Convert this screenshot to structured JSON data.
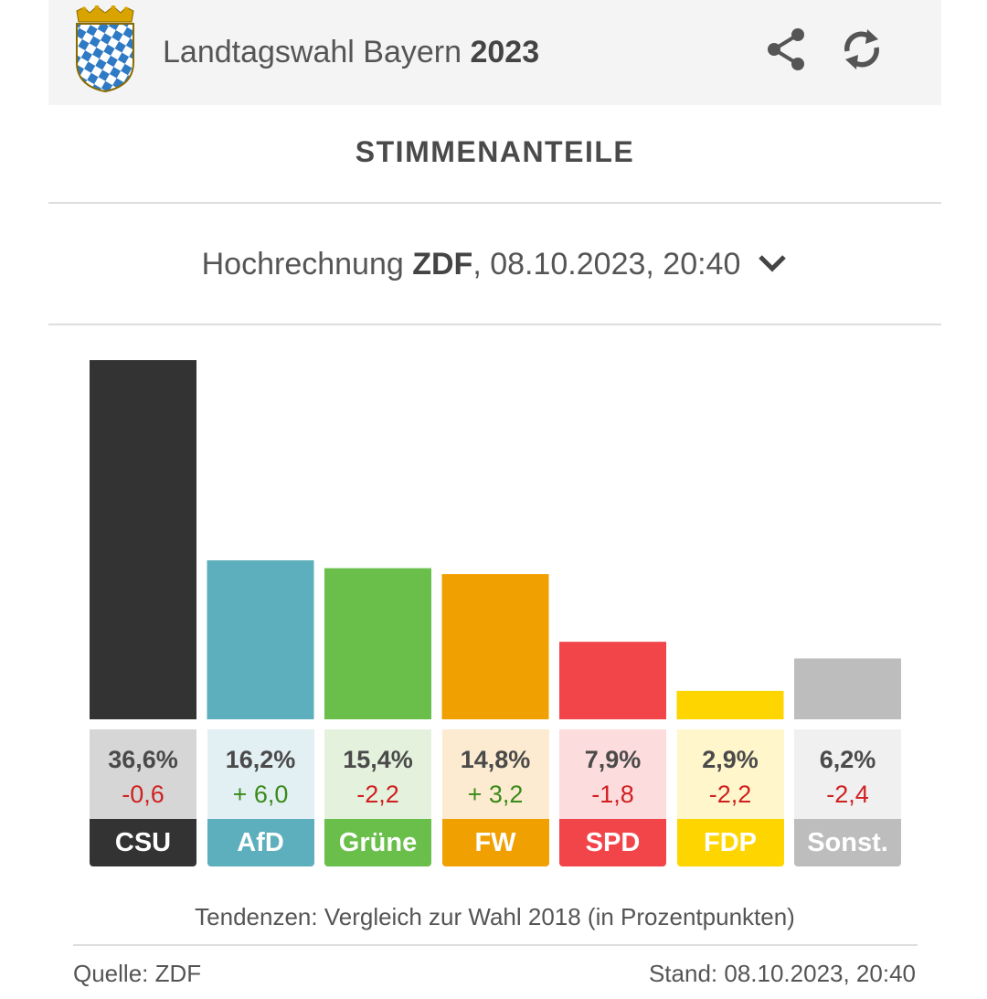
{
  "header": {
    "title_prefix": "Landtagswahl Bayern",
    "title_year": "2023",
    "logo": "bavaria-coat-of-arms",
    "share_icon": "share-icon",
    "refresh_icon": "refresh-icon"
  },
  "section_title": "STIMMENANTEILE",
  "selector": {
    "prefix": "Hochrechnung",
    "broadcaster": "ZDF",
    "suffix": ", 08.10.2023, 20:40",
    "chevron_icon": "chevron-down-icon"
  },
  "chart_data": {
    "type": "bar",
    "categories": [
      "CSU",
      "AfD",
      "Grüne",
      "FW",
      "SPD",
      "FDP",
      "Sonst."
    ],
    "values": [
      36.6,
      16.2,
      15.4,
      14.8,
      7.9,
      2.9,
      6.2
    ],
    "value_labels": [
      "36,6%",
      "16,2%",
      "15,4%",
      "14,8%",
      "7,9%",
      "2,9%",
      "6,2%"
    ],
    "changes": [
      -0.6,
      6.0,
      -2.2,
      3.2,
      -1.8,
      -2.2,
      -2.4
    ],
    "change_labels": [
      "-0,6",
      "+ 6,0",
      "-2,2",
      "+ 3,2",
      "-1,8",
      "-2,2",
      "-2,4"
    ],
    "colors": [
      "#333333",
      "#5eafbd",
      "#6abf4b",
      "#f0a000",
      "#f2454a",
      "#ffd500",
      "#bdbdbd"
    ],
    "tints": [
      "#d6d6d6",
      "#e3f0f3",
      "#e4f2dd",
      "#fcebd0",
      "#fcdcdd",
      "#fff6cc",
      "#f0f0f0"
    ],
    "positive_color": "#3a8a1a",
    "negative_color": "#d02020",
    "ylim": [
      0,
      36.6
    ],
    "grid": false
  },
  "footnote": "Tendenzen: Vergleich zur Wahl 2018 (in Prozentpunkten)",
  "source": "Quelle: ZDF",
  "stand": "Stand: 08.10.2023, 20:40"
}
